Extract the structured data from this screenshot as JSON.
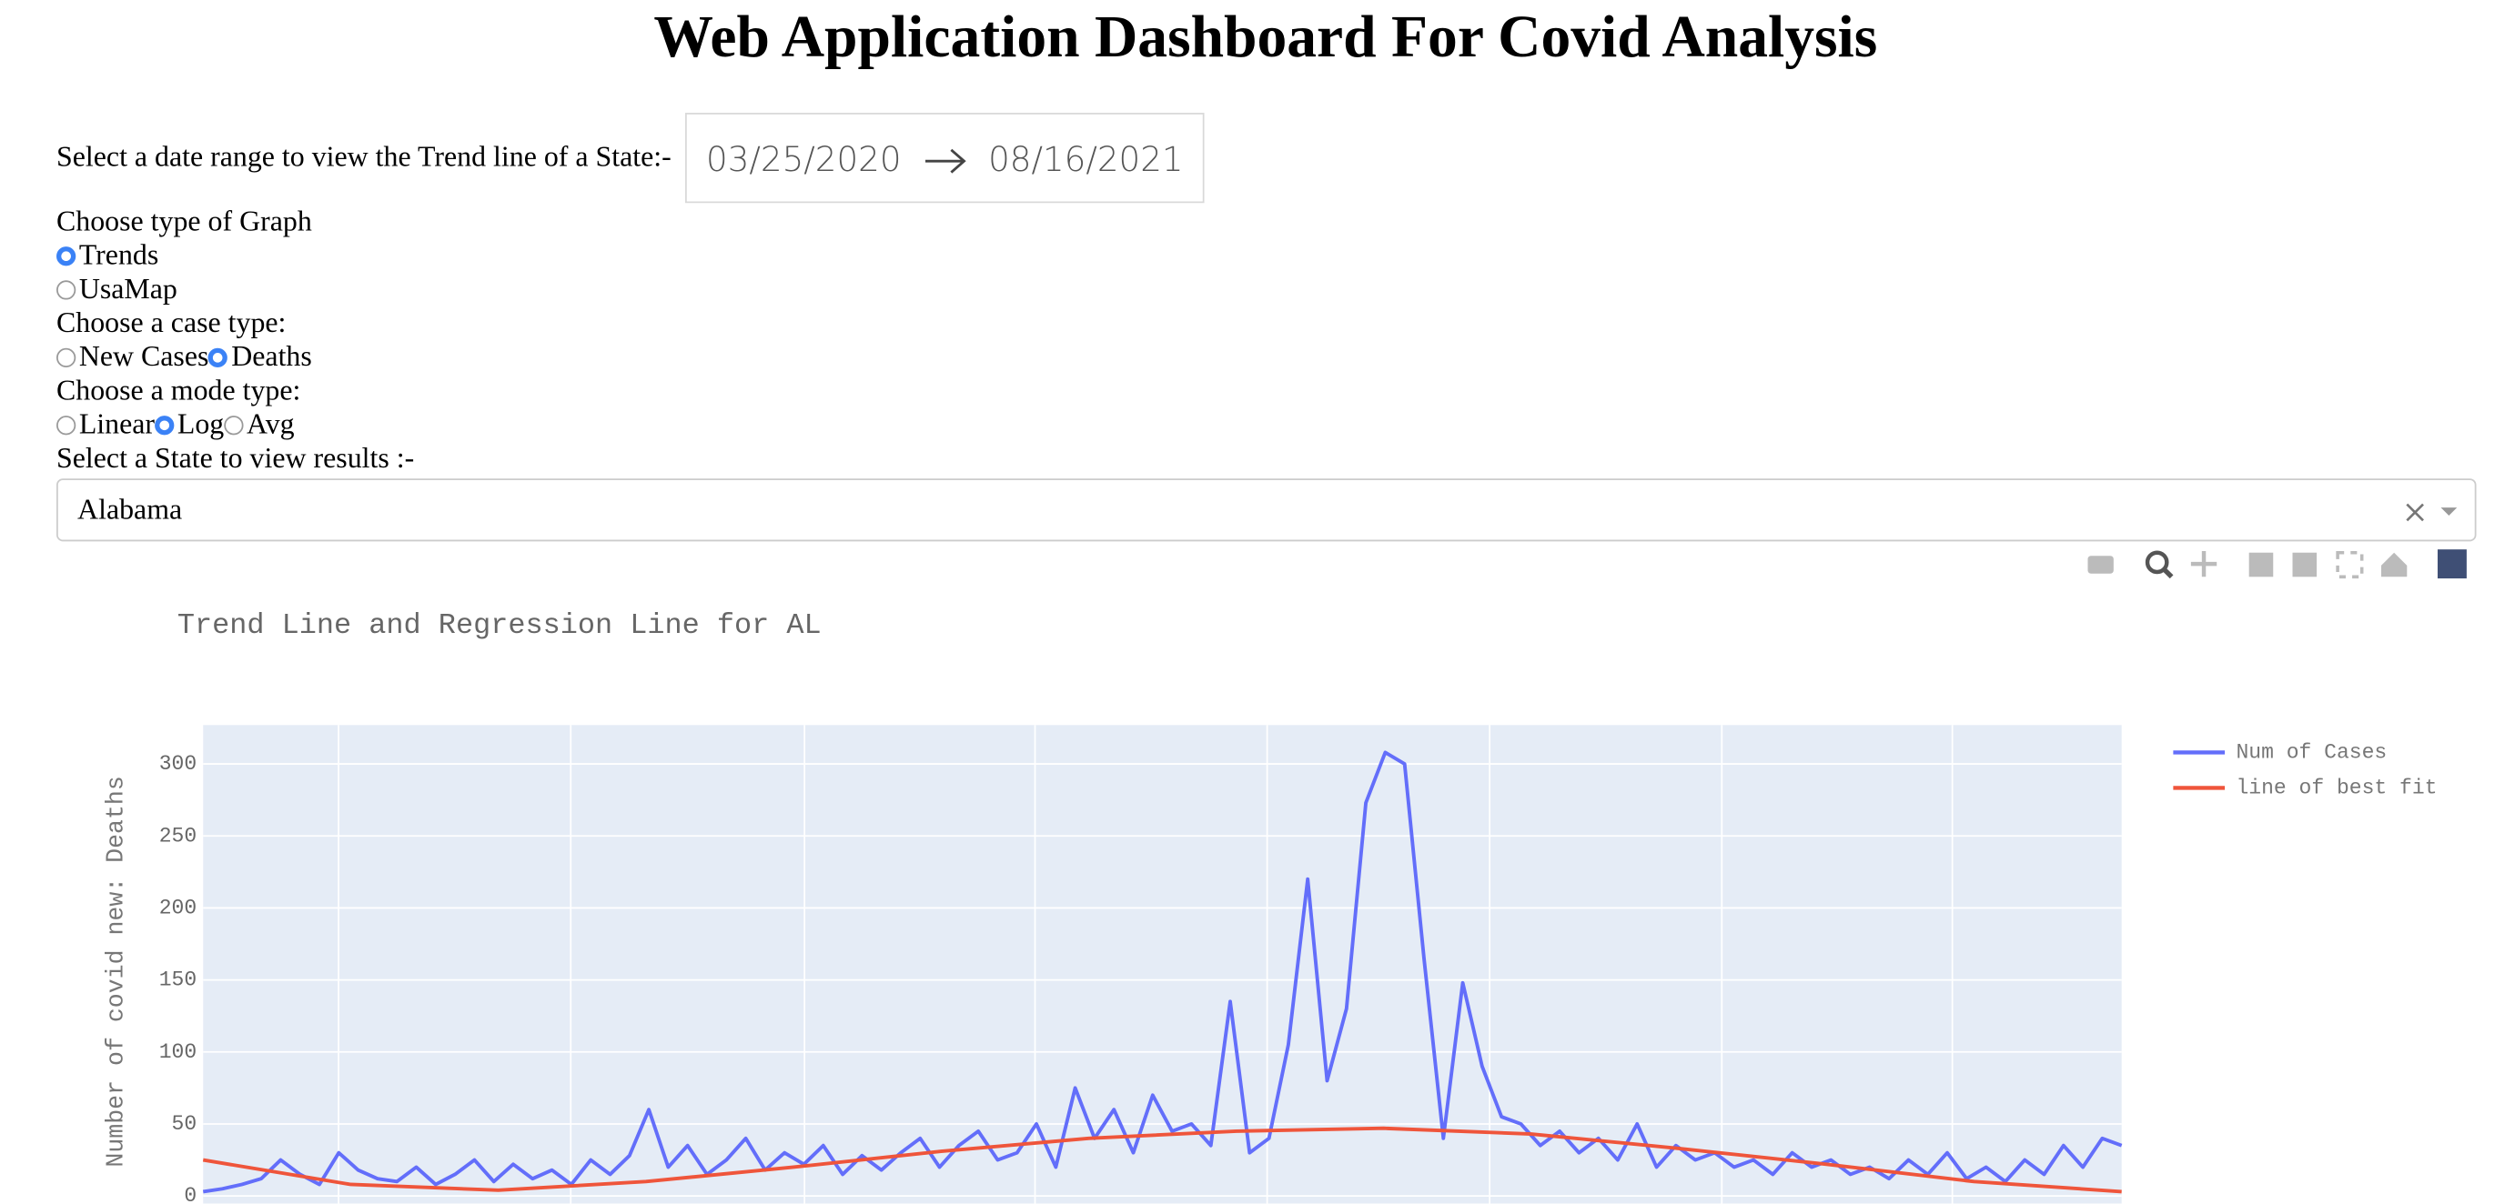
{
  "header": {
    "title": "Web Application Dashboard For Covid Analysis"
  },
  "controls": {
    "date_label": "Select a date range to view the Trend line of a State:-",
    "start_date": "03/25/2020",
    "end_date": "08/16/2021",
    "graph_type": {
      "label": "Choose type of Graph",
      "options": [
        "Trends",
        "UsaMap"
      ],
      "selected": "Trends"
    },
    "case_type": {
      "label": "Choose a case type:",
      "options": [
        "New Cases",
        "Deaths"
      ],
      "selected": "Deaths"
    },
    "mode_type": {
      "label": "Choose a mode type:",
      "options": [
        "Linear",
        "Log",
        "Avg"
      ],
      "selected": "Log"
    },
    "state": {
      "label": "Select a State to view results :-",
      "value": "Alabama"
    }
  },
  "chart_data": {
    "type": "line",
    "title": "Trend Line and Regression Line for AL",
    "ylabel": "Number of covid new: Deaths",
    "series": [
      {
        "name": "Num of Cases",
        "color": "#636efa",
        "values": [
          3,
          5,
          8,
          12,
          25,
          15,
          8,
          30,
          18,
          12,
          10,
          20,
          8,
          15,
          25,
          10,
          22,
          12,
          18,
          8,
          25,
          15,
          28,
          60,
          20,
          35,
          15,
          25,
          40,
          18,
          30,
          22,
          35,
          15,
          28,
          18,
          30,
          40,
          20,
          35,
          45,
          25,
          30,
          50,
          20,
          75,
          40,
          60,
          30,
          70,
          45,
          50,
          35,
          135,
          30,
          40,
          105,
          220,
          80,
          130,
          273,
          308,
          300,
          165,
          40,
          148,
          90,
          55,
          50,
          35,
          45,
          30,
          40,
          25,
          50,
          20,
          35,
          25,
          30,
          20,
          25,
          15,
          30,
          20,
          25,
          15,
          20,
          12,
          25,
          15,
          30,
          12,
          20,
          10,
          25,
          15,
          35,
          20,
          40,
          35
        ]
      },
      {
        "name": "line of best fit",
        "color": "#ef553b",
        "values": [
          25,
          8,
          4,
          10,
          20,
          31,
          40,
          45,
          47,
          43,
          33,
          22,
          10,
          3
        ]
      }
    ],
    "ylim": [
      -12,
      327
    ],
    "yticks": [
      0,
      50,
      100,
      150,
      200,
      250,
      300
    ],
    "grid": true,
    "legend": "top-right"
  }
}
